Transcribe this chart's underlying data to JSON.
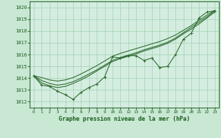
{
  "background_color": "#c8e8d4",
  "plot_bg_color": "#d4ede0",
  "grid_color": "#9ecfb0",
  "line_color": "#2d6a2d",
  "xlabel": "Graphe pression niveau de la mer (hPa)",
  "ylim": [
    1011.5,
    1020.5
  ],
  "xlim": [
    -0.5,
    23.5
  ],
  "yticks": [
    1012,
    1013,
    1014,
    1015,
    1016,
    1017,
    1018,
    1019,
    1020
  ],
  "xticks": [
    0,
    1,
    2,
    3,
    4,
    5,
    6,
    7,
    8,
    9,
    10,
    11,
    12,
    13,
    14,
    15,
    16,
    17,
    18,
    19,
    20,
    21,
    22,
    23
  ],
  "series": {
    "main": [
      1014.2,
      1013.4,
      1013.3,
      1012.9,
      1012.6,
      1012.2,
      1012.8,
      1013.2,
      1013.5,
      1014.1,
      1015.8,
      1015.7,
      1015.9,
      1015.9,
      1015.5,
      1015.7,
      1014.9,
      1015.0,
      1016.0,
      1017.3,
      1017.8,
      1019.1,
      1019.6,
      1019.7
    ],
    "smooth1": [
      1014.2,
      1013.8,
      1013.55,
      1013.4,
      1013.5,
      1013.7,
      1014.0,
      1014.35,
      1014.7,
      1015.1,
      1015.5,
      1015.75,
      1015.95,
      1016.15,
      1016.4,
      1016.6,
      1016.8,
      1017.05,
      1017.4,
      1017.85,
      1018.3,
      1018.75,
      1019.2,
      1019.7
    ],
    "smooth2": [
      1014.2,
      1013.6,
      1013.35,
      1013.2,
      1013.3,
      1013.55,
      1013.85,
      1014.2,
      1014.6,
      1015.0,
      1015.4,
      1015.65,
      1015.85,
      1016.05,
      1016.3,
      1016.5,
      1016.7,
      1016.95,
      1017.3,
      1017.75,
      1018.15,
      1018.6,
      1019.1,
      1019.6
    ],
    "smooth3": [
      1014.2,
      1014.05,
      1013.85,
      1013.75,
      1013.85,
      1014.05,
      1014.35,
      1014.7,
      1015.05,
      1015.45,
      1015.85,
      1016.1,
      1016.3,
      1016.5,
      1016.7,
      1016.9,
      1017.1,
      1017.35,
      1017.65,
      1018.05,
      1018.45,
      1018.9,
      1019.35,
      1019.75
    ]
  }
}
